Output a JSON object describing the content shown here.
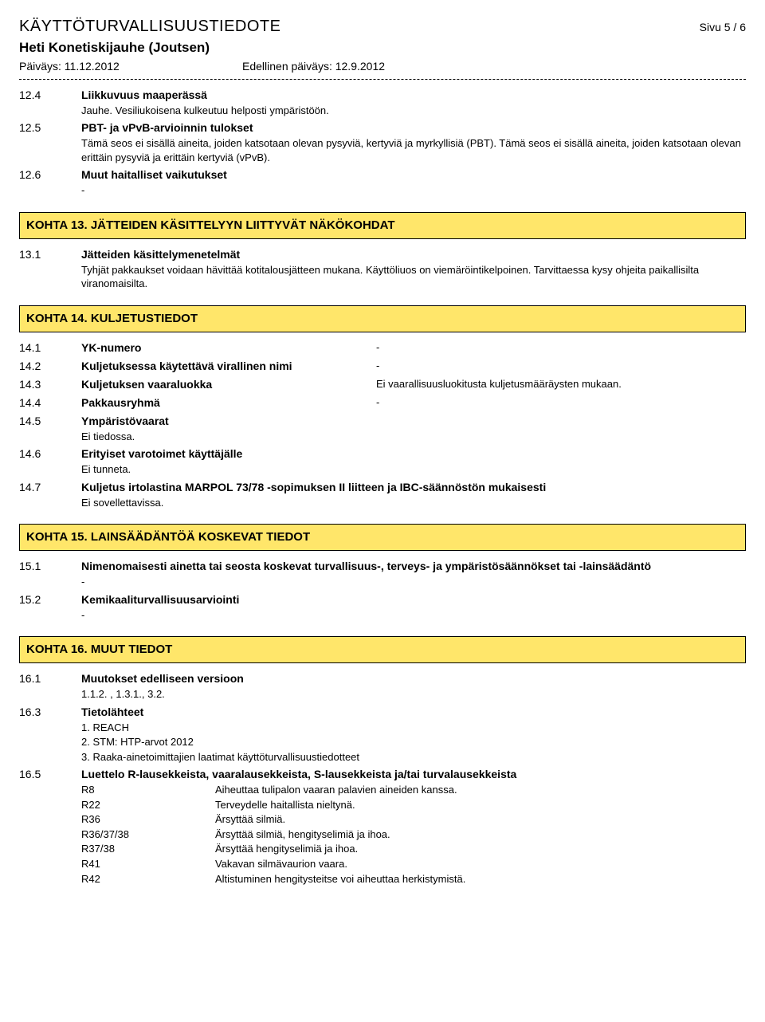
{
  "header": {
    "doc_title": "KÄYTTÖTURVALLISUUSTIEDOTE",
    "page_label": "Sivu 5 / 6",
    "subtitle": "Heti Konetiskijauhe (Joutsen)",
    "date_label": "Päiväys: 11.12.2012",
    "prev_date_label": "Edellinen päiväys: 12.9.2012"
  },
  "pre": {
    "i124": {
      "num": "12.4",
      "label": "Liikkuvuus maaperässä",
      "text": "Jauhe. Vesiliukoisena kulkeutuu helposti ympäristöön."
    },
    "i125": {
      "num": "12.5",
      "label": "PBT- ja vPvB-arvioinnin tulokset",
      "text": "Tämä seos ei sisällä aineita, joiden katsotaan olevan pysyviä, kertyviä ja myrkyllisiä (PBT). Tämä seos ei sisällä aineita, joiden katsotaan olevan erittäin pysyviä ja erittäin kertyviä (vPvB)."
    },
    "i126": {
      "num": "12.6",
      "label": "Muut haitalliset vaikutukset",
      "text": "-"
    }
  },
  "k13": {
    "title": "KOHTA 13. JÄTTEIDEN KÄSITTELYYN LIITTYVÄT NÄKÖKOHDAT",
    "i131": {
      "num": "13.1",
      "label": "Jätteiden käsittelymenetelmät",
      "text": "Tyhjät pakkaukset voidaan hävittää kotitalousjätteen mukana. Käyttöliuos on viemäröintikelpoinen. Tarvittaessa kysy ohjeita paikallisilta viranomaisilta."
    }
  },
  "k14": {
    "title": "KOHTA 14. KULJETUSTIEDOT",
    "i141": {
      "num": "14.1",
      "label": "YK-numero",
      "val": "-"
    },
    "i142": {
      "num": "14.2",
      "label": "Kuljetuksessa käytettävä virallinen nimi",
      "val": "-"
    },
    "i143": {
      "num": "14.3",
      "label": "Kuljetuksen vaaraluokka",
      "val": "Ei vaarallisuusluokitusta kuljetusmääräysten mukaan."
    },
    "i144": {
      "num": "14.4",
      "label": "Pakkausryhmä",
      "val": "-"
    },
    "i145": {
      "num": "14.5",
      "label": "Ympäristövaarat",
      "text": "Ei tiedossa."
    },
    "i146": {
      "num": "14.6",
      "label": "Erityiset varotoimet käyttäjälle",
      "text": "Ei tunneta."
    },
    "i147": {
      "num": "14.7",
      "label": "Kuljetus irtolastina MARPOL 73/78 -sopimuksen II liitteen ja IBC-säännöstön mukaisesti",
      "text": "Ei sovellettavissa."
    }
  },
  "k15": {
    "title": "KOHTA 15. LAINSÄÄDÄNTÖÄ KOSKEVAT TIEDOT",
    "i151": {
      "num": "15.1",
      "label": "Nimenomaisesti ainetta tai seosta koskevat turvallisuus-, terveys- ja ympäristösäännökset tai -lainsäädäntö",
      "text": "-"
    },
    "i152": {
      "num": "15.2",
      "label": "Kemikaaliturvallisuusarviointi",
      "text": "-"
    }
  },
  "k16": {
    "title": "KOHTA 16. MUUT TIEDOT",
    "i161": {
      "num": "16.1",
      "label": "Muutokset edelliseen versioon",
      "text": "1.1.2. , 1.3.1., 3.2."
    },
    "i163": {
      "num": "16.3",
      "label": "Tietolähteet",
      "l1": "1. REACH",
      "l2": "2. STM: HTP-arvot 2012",
      "l3": "3. Raaka-ainetoimittajien laatimat käyttöturvallisuustiedotteet"
    },
    "i165": {
      "num": "16.5",
      "label": "Luettelo R-lausekkeista, vaaralausekkeista, S-lausekkeista ja/tai turvalausekkeista",
      "phrases": {
        "r8": {
          "code": "R8",
          "desc": "Aiheuttaa tulipalon vaaran palavien aineiden kanssa."
        },
        "r22": {
          "code": "R22",
          "desc": "Terveydelle haitallista nieltynä."
        },
        "r36": {
          "code": "R36",
          "desc": "Ärsyttää silmiä."
        },
        "r363738": {
          "code": "R36/37/38",
          "desc": "Ärsyttää silmiä, hengityselimiä ja ihoa."
        },
        "r3738": {
          "code": "R37/38",
          "desc": "Ärsyttää hengityselimiä ja ihoa."
        },
        "r41": {
          "code": "R41",
          "desc": "Vakavan silmävaurion vaara."
        },
        "r42": {
          "code": "R42",
          "desc": "Altistuminen hengitysteitse voi aiheuttaa herkistymistä."
        }
      }
    }
  }
}
